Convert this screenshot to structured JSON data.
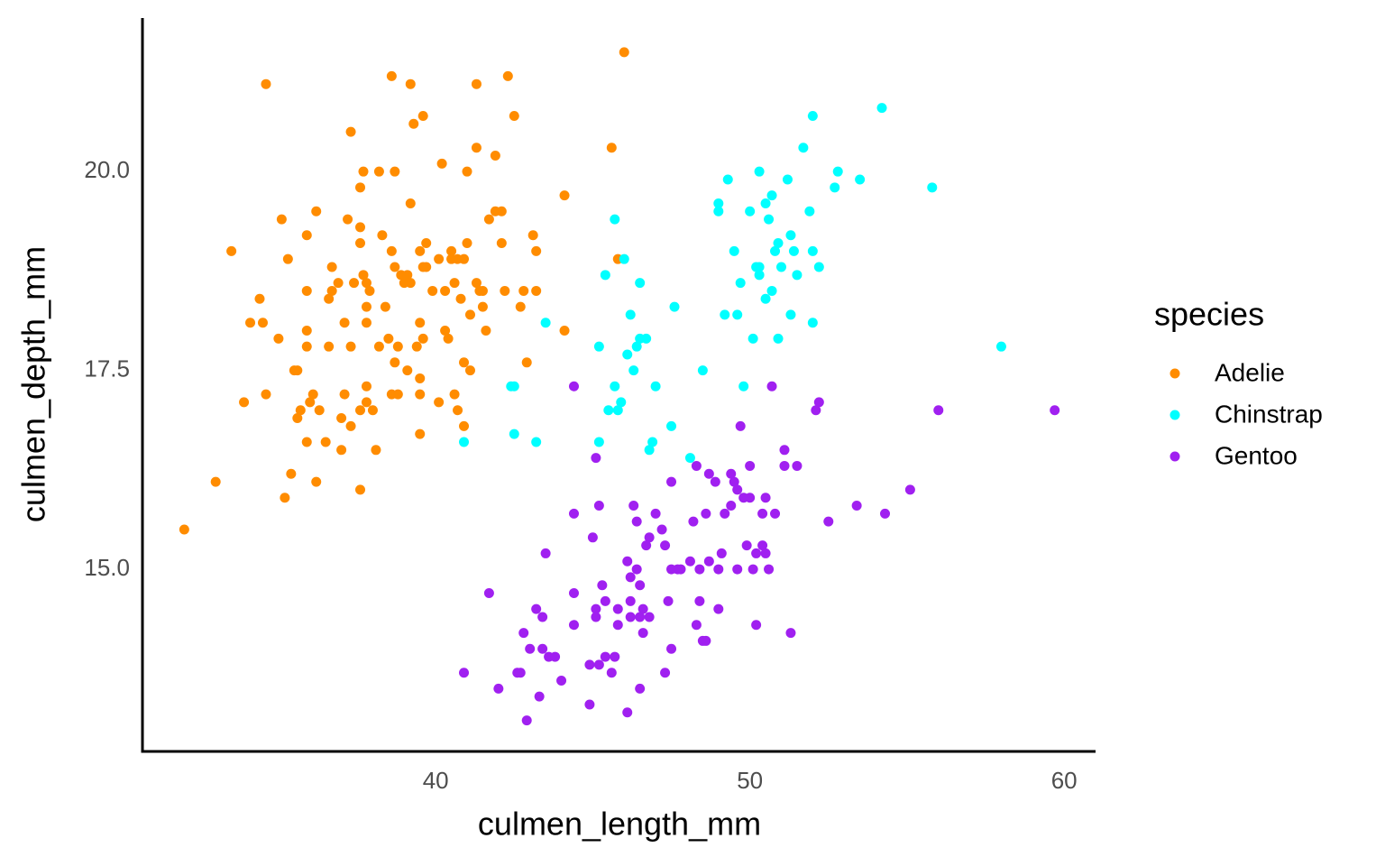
{
  "chart_data": {
    "type": "scatter",
    "x_label": "culmen_length_mm",
    "y_label": "culmen_depth_mm",
    "legend_title": "species",
    "legend": "right",
    "grid": false,
    "xlim": [
      30.67,
      61.0
    ],
    "ylim": [
      12.71,
      21.93
    ],
    "xticks": [
      40,
      50,
      60
    ],
    "yticks": [
      {
        "value": 15,
        "label": "15.0"
      },
      17.5,
      {
        "value": 20,
        "label": "20.0"
      }
    ],
    "series": [
      {
        "name": "Adelie",
        "color": "#ff8c00",
        "x": [
          32.0,
          33.0,
          33.5,
          34.6,
          33.9,
          34.1,
          34.5,
          34.4,
          34.6,
          35.0,
          35.1,
          35.3,
          35.5,
          35.6,
          35.4,
          35.2,
          35.7,
          35.6,
          35.9,
          35.9,
          35.9,
          35.9,
          35.9,
          36.0,
          36.1,
          36.2,
          36.2,
          36.3,
          36.5,
          36.6,
          36.6,
          36.7,
          36.7,
          36.9,
          37.0,
          37.0,
          37.2,
          37.1,
          37.1,
          37.3,
          37.3,
          37.3,
          37.4,
          37.6,
          37.6,
          37.6,
          37.6,
          37.6,
          37.7,
          37.7,
          37.8,
          37.8,
          37.8,
          37.8,
          37.8,
          37.9,
          38.0,
          38.1,
          38.2,
          38.2,
          38.3,
          38.4,
          38.5,
          38.6,
          38.6,
          38.6,
          38.7,
          38.7,
          38.7,
          38.8,
          38.8,
          38.9,
          39.0,
          39.1,
          39.1,
          39.2,
          39.2,
          39.2,
          39.3,
          39.4,
          39.5,
          39.5,
          39.5,
          39.5,
          39.5,
          39.6,
          39.6,
          39.6,
          39.7,
          39.7,
          39.9,
          40.1,
          40.1,
          40.2,
          40.3,
          40.3,
          40.4,
          40.5,
          40.5,
          40.6,
          40.6,
          40.7,
          40.7,
          40.8,
          40.9,
          40.9,
          40.9,
          41.0,
          41.0,
          41.1,
          41.1,
          41.3,
          41.3,
          41.3,
          41.4,
          41.5,
          41.5,
          41.6,
          41.7,
          41.9,
          41.9,
          42.1,
          42.1,
          42.2,
          42.3,
          42.5,
          42.7,
          42.8,
          42.9,
          43.1,
          43.2,
          43.2,
          44.1,
          44.1,
          45.6,
          45.8,
          46.0
        ],
        "values": [
          15.5,
          16.1,
          19.0,
          21.1,
          17.1,
          18.1,
          18.1,
          18.4,
          17.2,
          17.9,
          19.4,
          18.9,
          17.5,
          17.5,
          16.2,
          15.9,
          17.0,
          16.9,
          16.6,
          17.8,
          19.2,
          18.5,
          18.0,
          17.1,
          17.2,
          16.1,
          19.5,
          17.0,
          16.6,
          18.4,
          17.8,
          18.5,
          18.8,
          18.6,
          16.9,
          16.5,
          19.4,
          18.1,
          17.2,
          20.5,
          16.8,
          17.8,
          18.6,
          19.3,
          19.1,
          17.0,
          19.8,
          16.0,
          18.7,
          20.0,
          18.3,
          18.1,
          17.3,
          17.1,
          18.6,
          18.5,
          17.0,
          16.5,
          20.0,
          17.8,
          19.2,
          18.3,
          17.9,
          21.2,
          17.2,
          19.0,
          20.0,
          18.8,
          17.6,
          17.2,
          17.8,
          18.7,
          18.6,
          17.5,
          18.7,
          21.1,
          19.6,
          18.6,
          20.6,
          17.8,
          16.7,
          17.2,
          18.1,
          19.0,
          17.4,
          20.7,
          18.8,
          17.9,
          19.1,
          18.8,
          18.5,
          18.9,
          17.1,
          20.1,
          18.5,
          18.0,
          17.9,
          19.0,
          18.9,
          17.2,
          18.6,
          17.0,
          18.9,
          18.4,
          18.9,
          16.8,
          17.6,
          20.0,
          19.1,
          17.5,
          18.2,
          21.1,
          20.3,
          18.6,
          18.5,
          18.5,
          18.3,
          18.0,
          19.4,
          20.2,
          19.5,
          19.1,
          19.5,
          18.5,
          21.2,
          20.7,
          18.3,
          18.5,
          17.6,
          19.2,
          18.5,
          19.0,
          19.7,
          18.0,
          20.3,
          18.9,
          21.5
        ]
      },
      {
        "name": "Chinstrap",
        "color": "#00ffff",
        "x": [
          40.9,
          42.4,
          42.5,
          42.5,
          43.2,
          43.5,
          45.2,
          45.2,
          45.4,
          45.5,
          45.7,
          45.7,
          45.8,
          45.9,
          46.0,
          46.1,
          46.2,
          46.3,
          46.5,
          46.4,
          46.5,
          46.7,
          46.8,
          46.9,
          47.0,
          47.5,
          47.6,
          48.1,
          48.5,
          49.0,
          49.0,
          49.2,
          49.3,
          49.5,
          49.6,
          49.7,
          49.8,
          50.0,
          50.1,
          50.2,
          50.3,
          50.3,
          50.3,
          50.5,
          50.5,
          50.6,
          50.7,
          50.7,
          50.8,
          50.9,
          50.9,
          51.0,
          51.2,
          51.3,
          51.3,
          51.4,
          51.5,
          51.7,
          51.9,
          52.0,
          52.0,
          52.0,
          52.2,
          52.7,
          52.8,
          53.5,
          54.2,
          55.8,
          58.0
        ],
        "values": [
          16.6,
          17.3,
          17.3,
          16.7,
          16.6,
          18.1,
          17.8,
          16.6,
          18.7,
          17.0,
          19.4,
          17.3,
          17.0,
          17.1,
          18.9,
          17.7,
          18.2,
          17.5,
          18.6,
          17.8,
          17.9,
          17.9,
          16.5,
          16.6,
          17.3,
          16.8,
          18.3,
          16.4,
          17.5,
          19.6,
          19.5,
          18.2,
          19.9,
          19.0,
          18.2,
          18.6,
          17.3,
          19.5,
          17.9,
          18.8,
          18.8,
          20.0,
          18.7,
          19.6,
          18.4,
          19.4,
          19.7,
          18.5,
          19.0,
          19.1,
          17.9,
          18.8,
          19.9,
          19.2,
          18.2,
          19.0,
          18.7,
          20.3,
          19.5,
          20.7,
          19.0,
          18.1,
          18.8,
          19.8,
          20.0,
          19.9,
          20.8,
          19.8,
          17.8
        ]
      },
      {
        "name": "Gentoo",
        "color": "#a020f0",
        "x": [
          40.9,
          41.7,
          42.0,
          42.6,
          42.7,
          42.8,
          42.9,
          43.0,
          43.2,
          43.3,
          43.4,
          43.4,
          43.5,
          43.6,
          43.8,
          44.0,
          44.4,
          44.4,
          44.4,
          44.4,
          44.9,
          44.9,
          45.0,
          45.1,
          45.1,
          45.1,
          45.2,
          45.2,
          45.3,
          45.4,
          45.4,
          45.6,
          45.7,
          45.8,
          45.8,
          46.1,
          46.1,
          46.2,
          46.2,
          46.2,
          46.3,
          46.4,
          46.4,
          46.5,
          46.5,
          46.5,
          46.6,
          46.6,
          46.7,
          46.8,
          46.8,
          47.0,
          47.2,
          47.3,
          47.3,
          47.4,
          47.5,
          47.5,
          47.5,
          47.7,
          47.8,
          48.1,
          48.2,
          48.3,
          48.3,
          48.4,
          48.4,
          48.5,
          48.6,
          48.6,
          48.7,
          48.7,
          48.9,
          49.0,
          49.0,
          49.1,
          49.2,
          49.4,
          49.4,
          49.5,
          49.6,
          49.6,
          49.7,
          49.8,
          49.9,
          50.0,
          50.0,
          50.1,
          50.2,
          50.2,
          50.4,
          50.4,
          50.5,
          50.5,
          50.6,
          50.7,
          50.8,
          51.1,
          51.1,
          51.3,
          51.5,
          52.1,
          52.2,
          52.5,
          53.4,
          54.3,
          55.1,
          56.0,
          59.7
        ],
        "values": [
          13.7,
          14.7,
          13.5,
          13.7,
          13.7,
          14.2,
          13.1,
          14.0,
          14.5,
          13.4,
          14.0,
          14.4,
          15.2,
          13.9,
          13.9,
          13.6,
          17.3,
          15.7,
          14.7,
          14.3,
          13.3,
          13.8,
          15.4,
          14.4,
          14.5,
          16.4,
          15.8,
          13.8,
          14.8,
          13.9,
          14.6,
          13.7,
          13.9,
          14.5,
          14.3,
          13.2,
          15.1,
          14.6,
          14.4,
          14.9,
          15.8,
          15.6,
          15.0,
          14.4,
          13.5,
          14.8,
          14.5,
          14.2,
          15.3,
          15.4,
          14.4,
          15.7,
          15.5,
          13.7,
          15.3,
          14.6,
          14.0,
          15.0,
          16.1,
          15.0,
          15.0,
          15.1,
          15.6,
          14.3,
          16.3,
          14.6,
          15.0,
          14.1,
          15.7,
          14.1,
          16.2,
          15.1,
          16.1,
          15.0,
          14.5,
          15.2,
          15.7,
          15.8,
          16.2,
          16.1,
          15.0,
          16.0,
          16.8,
          15.9,
          15.3,
          15.9,
          16.3,
          15.0,
          14.3,
          15.2,
          15.7,
          15.3,
          15.2,
          15.9,
          15.0,
          17.3,
          15.7,
          16.5,
          16.3,
          14.2,
          16.3,
          17.0,
          17.1,
          15.6,
          15.8,
          15.7,
          16.0,
          17.0,
          17.0
        ]
      }
    ]
  }
}
